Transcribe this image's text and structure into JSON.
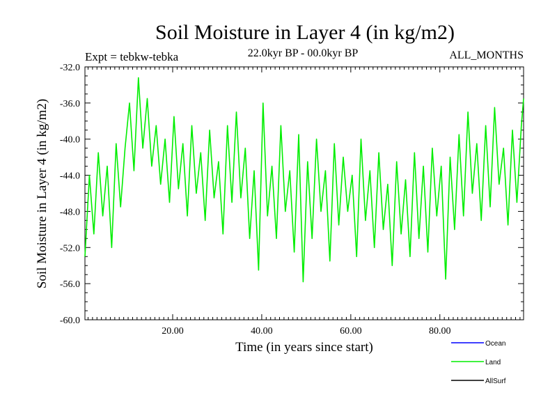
{
  "header": {
    "title": "Soil Moisture in Layer 4 (in kg/m2)",
    "left": "Expt = tebkw-tebka",
    "center": "22.0kyr BP - 00.0kyr BP",
    "right": "ALL_MONTHS"
  },
  "colors": {
    "land": "#00ee00",
    "ocean": "#0000ff",
    "allsurf": "#000000"
  },
  "legend": [
    {
      "label": "Ocean",
      "color": "#0000ff"
    },
    {
      "label": "Land",
      "color": "#00ee00"
    },
    {
      "label": "AllSurf",
      "color": "#000000"
    }
  ],
  "chart_data": {
    "type": "line",
    "title": "Soil Moisture in Layer 4 (in kg/m2)",
    "xlabel": "Time (in years since start)",
    "ylabel": "Soil Moisture in Layer 4 (in kg/m2)",
    "xlim": [
      0.3,
      98.8
    ],
    "ylim": [
      -60.0,
      -32.0
    ],
    "xticks": [
      20,
      40,
      60,
      80
    ],
    "xtick_labels": [
      "20.00",
      "40.00",
      "60.00",
      "80.00"
    ],
    "yticks": [
      -32,
      -36,
      -40,
      -44,
      -48,
      -52,
      -56,
      -60
    ],
    "ytick_labels": [
      "-32.0",
      "-36.0",
      "-40.0",
      "-44.0",
      "-48.0",
      "-52.0",
      "-56.0",
      "-60.0"
    ],
    "series": [
      {
        "name": "Land",
        "x": [
          0.3,
          1.3,
          2.3,
          3.3,
          4.3,
          5.3,
          6.3,
          7.3,
          8.3,
          9.3,
          10.3,
          11.3,
          12.3,
          13.3,
          14.3,
          15.3,
          16.3,
          17.3,
          18.3,
          19.3,
          20.3,
          21.3,
          22.3,
          23.3,
          24.3,
          25.3,
          26.3,
          27.3,
          28.3,
          29.3,
          30.3,
          31.3,
          32.3,
          33.3,
          34.3,
          35.3,
          36.3,
          37.3,
          38.3,
          39.3,
          40.3,
          41.3,
          42.3,
          43.3,
          44.3,
          45.3,
          46.3,
          47.3,
          48.3,
          49.3,
          50.3,
          51.3,
          52.3,
          53.3,
          54.3,
          55.3,
          56.3,
          57.3,
          58.3,
          59.3,
          60.3,
          61.3,
          62.3,
          63.3,
          64.3,
          65.3,
          66.3,
          67.3,
          68.3,
          69.3,
          70.3,
          71.3,
          72.3,
          73.3,
          74.3,
          75.3,
          76.3,
          77.3,
          78.3,
          79.3,
          80.3,
          81.3,
          82.3,
          83.3,
          84.3,
          85.3,
          86.3,
          87.3,
          88.3,
          89.3,
          90.3,
          91.3,
          92.3,
          93.3,
          94.3,
          95.3,
          96.3,
          97.3,
          98.3,
          98.8
        ],
        "y": [
          -53.0,
          -44.0,
          -50.5,
          -41.5,
          -48.5,
          -43.0,
          -52.0,
          -40.5,
          -47.5,
          -41.0,
          -36.0,
          -43.5,
          -33.2,
          -41.0,
          -35.5,
          -43.0,
          -38.5,
          -45.0,
          -40.0,
          -47.0,
          -37.5,
          -45.5,
          -40.5,
          -48.5,
          -38.5,
          -46.0,
          -41.5,
          -49.0,
          -39.0,
          -46.5,
          -42.5,
          -50.5,
          -38.5,
          -47.0,
          -37.0,
          -46.5,
          -41.0,
          -51.0,
          -43.5,
          -54.5,
          -36.0,
          -48.5,
          -43.0,
          -51.0,
          -38.5,
          -48.0,
          -43.5,
          -52.5,
          -39.5,
          -55.8,
          -42.5,
          -51.0,
          -40.0,
          -48.0,
          -43.5,
          -53.5,
          -40.5,
          -49.5,
          -42.0,
          -48.0,
          -44.0,
          -53.0,
          -40.0,
          -49.0,
          -43.5,
          -52.0,
          -41.5,
          -50.0,
          -45.0,
          -54.0,
          -42.5,
          -50.5,
          -44.5,
          -53.0,
          -41.5,
          -51.0,
          -43.0,
          -52.5,
          -41.0,
          -48.5,
          -43.0,
          -55.5,
          -42.0,
          -50.0,
          -39.5,
          -48.5,
          -37.0,
          -46.0,
          -40.5,
          -49.0,
          -38.5,
          -47.5,
          -36.5,
          -45.0,
          -41.0,
          -49.5,
          -39.0,
          -47.0,
          -38.5,
          -35.5
        ]
      },
      {
        "name": "Ocean",
        "x": [],
        "y": []
      },
      {
        "name": "AllSurf",
        "x": [],
        "y": []
      }
    ],
    "legend_position": "bottom-right"
  }
}
